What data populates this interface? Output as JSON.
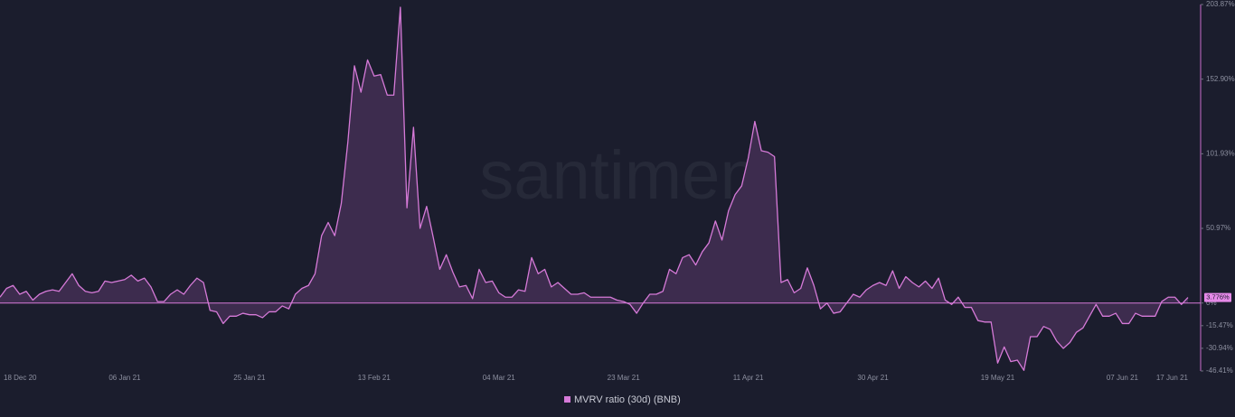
{
  "chart_data": {
    "type": "area",
    "watermark": "santiment",
    "categories": [
      "18 Dec 20",
      null,
      null,
      null,
      null,
      null,
      null,
      null,
      null,
      null,
      null,
      null,
      null,
      null,
      null,
      null,
      null,
      null,
      null,
      "06 Jan 21",
      null,
      null,
      null,
      null,
      null,
      null,
      null,
      null,
      null,
      null,
      null,
      null,
      null,
      null,
      null,
      null,
      null,
      null,
      "25 Jan 21",
      null,
      null,
      null,
      null,
      null,
      null,
      null,
      null,
      null,
      null,
      null,
      null,
      null,
      null,
      null,
      null,
      null,
      null,
      "13 Feb 21",
      null,
      null,
      null,
      null,
      null,
      null,
      null,
      null,
      null,
      null,
      null,
      null,
      null,
      null,
      null,
      null,
      null,
      null,
      "04 Mar 21",
      null,
      null,
      null,
      null,
      null,
      null,
      null,
      null,
      null,
      null,
      null,
      null,
      null,
      null,
      null,
      null,
      null,
      null,
      "23 Mar 21",
      null,
      null,
      null,
      null,
      null,
      null,
      null,
      null,
      null,
      null,
      null,
      null,
      null,
      null,
      null,
      null,
      null,
      null,
      "11 Apr 21",
      null,
      null,
      null,
      null,
      null,
      null,
      null,
      null,
      null,
      null,
      null,
      null,
      null,
      null,
      null,
      null,
      null,
      null,
      "30 Apr 21",
      null,
      null,
      null,
      null,
      null,
      null,
      null,
      null,
      null,
      null,
      null,
      null,
      null,
      null,
      null,
      null,
      null,
      null,
      "19 May 21",
      null,
      null,
      null,
      null,
      null,
      null,
      null,
      null,
      null,
      null,
      null,
      null,
      null,
      null,
      null,
      null,
      null,
      null,
      "07 Jun 21",
      null,
      null,
      null,
      null,
      null,
      null,
      null,
      null,
      null,
      "17 Jun 21"
    ],
    "series": [
      {
        "name": "MVRV ratio (30d) (BNB)",
        "color": "#d67ad8",
        "fill": "#3d2c4e",
        "values": [
          4,
          10,
          12,
          6,
          8,
          2,
          6,
          8,
          9,
          8,
          14,
          20,
          12,
          8,
          7,
          8,
          15,
          14,
          15,
          16,
          19,
          15,
          17,
          11,
          1,
          1,
          6,
          9,
          6,
          12,
          17,
          14,
          -5,
          -6,
          -14,
          -9,
          -9,
          -7,
          -8,
          -8,
          -10,
          -6,
          -6,
          -2,
          -4,
          6,
          10,
          12,
          20,
          46,
          55,
          46,
          68,
          110,
          162,
          144,
          166,
          155,
          156,
          142,
          142,
          202,
          65,
          120,
          51,
          66,
          45,
          23,
          33,
          21,
          11,
          12,
          3,
          23,
          14,
          15,
          7,
          4,
          4,
          9,
          8,
          31,
          20,
          23,
          11,
          14,
          10,
          6,
          6,
          7,
          4,
          4,
          4,
          4,
          2,
          1,
          -1,
          -7,
          0,
          6,
          6,
          8,
          23,
          20,
          31,
          33,
          26,
          35,
          41,
          56,
          43,
          63,
          74,
          80,
          99,
          124,
          104,
          103,
          100,
          14,
          16,
          7,
          10,
          24,
          12,
          -4,
          0,
          -7,
          -6,
          0,
          6,
          4,
          9,
          12,
          14,
          12,
          22,
          10,
          18,
          14,
          11,
          15,
          10,
          17,
          2,
          -1,
          4,
          -3,
          -3,
          -12,
          -13,
          -13,
          -41,
          -30,
          -40,
          -39,
          -46,
          -23,
          -23,
          -16,
          -18,
          -26,
          -31,
          -27,
          -20,
          -17,
          -9,
          -1,
          -9,
          -9,
          -7,
          -14,
          -14,
          -7,
          -9,
          -9,
          -9,
          1,
          4,
          4,
          -1,
          3.776
        ]
      }
    ],
    "current_value": {
      "value": 3.776,
      "label": "3.776%"
    },
    "ylim": [
      -46.41,
      203.87
    ],
    "yticks": [
      {
        "value": 203.87,
        "label": "203.87%"
      },
      {
        "value": 152.9,
        "label": "152.90%"
      },
      {
        "value": 101.93,
        "label": "101.93%"
      },
      {
        "value": 50.97,
        "label": "50.97%"
      },
      {
        "value": 0,
        "label": "0%"
      },
      {
        "value": -15.47,
        "label": "-15.47%"
      },
      {
        "value": -30.94,
        "label": "-30.94%"
      },
      {
        "value": -46.41,
        "label": "-46.41%"
      }
    ],
    "grid": false
  }
}
